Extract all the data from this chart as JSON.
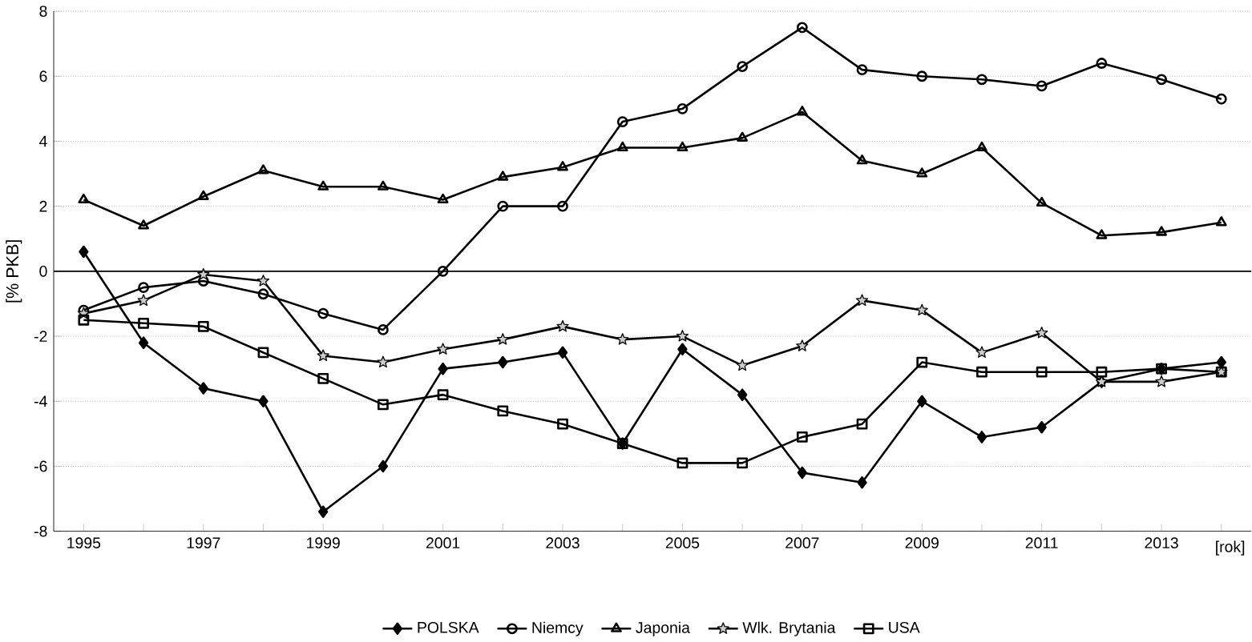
{
  "chart_data": {
    "type": "line",
    "ylabel": "[% PKB]",
    "xlabel": "[rok]",
    "x": [
      1995,
      1996,
      1997,
      1998,
      1999,
      2000,
      2001,
      2002,
      2003,
      2004,
      2005,
      2006,
      2007,
      2008,
      2009,
      2010,
      2011,
      2012,
      2013,
      2014
    ],
    "xlim": [
      1994.5,
      2014.5
    ],
    "xticks": [
      1995,
      {
        "value": 1996,
        "label": null
      },
      1997,
      {
        "value": 1998,
        "label": null
      },
      1999,
      {
        "value": 2000,
        "label": null
      },
      2001,
      {
        "value": 2002,
        "label": null
      },
      2003,
      {
        "value": 2004,
        "label": null
      },
      2005,
      {
        "value": 2006,
        "label": null
      },
      2007,
      {
        "value": 2008,
        "label": null
      },
      2009,
      {
        "value": 2010,
        "label": null
      },
      2011,
      {
        "value": 2012,
        "label": null
      },
      2013,
      {
        "value": 2014,
        "label": null
      }
    ],
    "ylim": [
      -8,
      8
    ],
    "yticks": [
      -8,
      -6,
      -4,
      -2,
      0,
      2,
      4,
      6,
      8
    ],
    "grid": "y",
    "legend": "bottom",
    "line_style": "solid",
    "ref_lines": [
      {
        "axis": "y",
        "value": 0,
        "color": "#000000"
      }
    ],
    "series": [
      {
        "name": "POLSKA",
        "color": "#000000",
        "marker": "diamond",
        "values": [
          0.6,
          -2.2,
          -3.6,
          -4.0,
          -7.4,
          -6.0,
          -3.0,
          -2.8,
          -2.5,
          -5.3,
          -2.4,
          -3.8,
          -6.2,
          -6.5,
          -4.0,
          -5.1,
          -4.8,
          -3.4,
          -3.0,
          -2.8
        ]
      },
      {
        "name": "Niemcy",
        "color": "#000000",
        "marker": "circle",
        "values": [
          -1.2,
          -0.5,
          -0.3,
          -0.7,
          -1.3,
          -1.8,
          0.0,
          2.0,
          2.0,
          4.6,
          5.0,
          6.3,
          7.5,
          6.2,
          6.0,
          5.9,
          5.7,
          6.4,
          5.9,
          5.3
        ]
      },
      {
        "name": "Japonia",
        "color": "#000000",
        "marker": "triangle",
        "values": [
          2.2,
          1.4,
          2.3,
          3.1,
          2.6,
          2.6,
          2.2,
          2.9,
          3.2,
          3.8,
          3.8,
          4.1,
          4.9,
          3.4,
          3.0,
          3.8,
          2.1,
          1.1,
          1.2,
          1.5
        ]
      },
      {
        "name": "Wlk. Brytania",
        "color": "#000000",
        "marker": "star",
        "values": [
          -1.3,
          -0.9,
          -0.1,
          -0.3,
          -2.6,
          -2.8,
          -2.4,
          -2.1,
          -1.7,
          -2.1,
          -2.0,
          -2.9,
          -2.3,
          -0.9,
          -1.2,
          -2.5,
          -1.9,
          -3.4,
          -3.4,
          -3.1
        ]
      },
      {
        "name": "USA",
        "color": "#000000",
        "marker": "square",
        "values": [
          -1.5,
          -1.6,
          -1.7,
          -2.5,
          -3.3,
          -4.1,
          -3.8,
          -4.3,
          -4.7,
          -5.3,
          -5.9,
          -5.9,
          -5.1,
          -4.7,
          -2.8,
          -3.1,
          -3.1,
          -3.1,
          -3.0,
          -3.1
        ]
      }
    ]
  }
}
